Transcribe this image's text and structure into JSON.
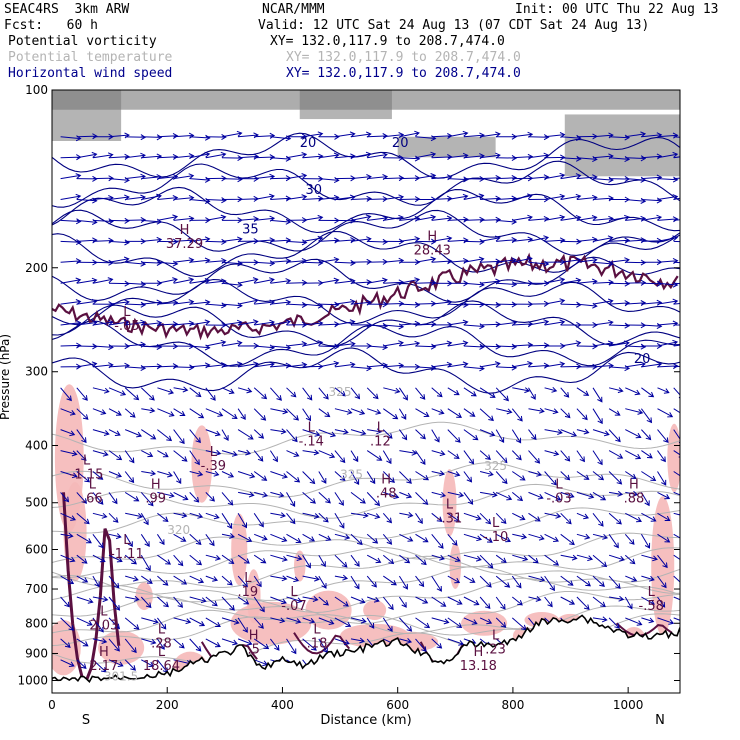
{
  "header": {
    "model": "SEAC4RS  3km ARW",
    "center": "NCAR/MMM",
    "init": "Init: 00 UTC Thu 22 Aug 13",
    "fcst": "Fcst:   60 h",
    "valid": "Valid: 12 UTC Sat 24 Aug 13 (07 CDT Sat 24 Aug 13)",
    "fields": [
      {
        "name": "Potential vorticity",
        "xy": "XY= 132.0,117.9 to 208.7,474.0"
      },
      {
        "name": "Potential temperature",
        "xy": "XY= 132.0,117.9 to 208.7,474.0"
      },
      {
        "name": "Horizontal wind speed",
        "xy": "XY= 132.0,117.9 to 208.7,474.0"
      }
    ]
  },
  "colors": {
    "pv_fill": "#f5b8b8",
    "pv_contour": "#5a1040",
    "theta_contour": "#b4b4b4",
    "wind_contour": "#000080",
    "vectors": "#0000a0",
    "terrain": "#000000",
    "strat_shading": "#777777"
  },
  "chart_data": {
    "type": "cross-section",
    "xlabel": "Distance (km)",
    "ylabel": "Pressure (hPa)",
    "x_ticks": [
      0,
      200,
      400,
      600,
      800,
      1000
    ],
    "y_ticks": [
      100,
      200,
      300,
      400,
      500,
      600,
      700,
      800,
      900,
      1000
    ],
    "xlim": [
      0,
      1090
    ],
    "ylim": [
      1050,
      100
    ],
    "y_scale": "log",
    "endpoints": {
      "left": "S",
      "right": "N"
    },
    "terrain_surface_hpa": {
      "x": [
        0,
        20,
        50,
        100,
        150,
        200,
        240,
        270,
        300,
        330,
        360,
        400,
        440,
        480,
        520,
        560,
        600,
        640,
        680,
        720,
        760,
        800,
        840,
        880,
        920,
        960,
        1000,
        1040,
        1080,
        1090
      ],
      "p": [
        1000,
        1000,
        995,
        990,
        985,
        975,
        940,
        920,
        900,
        880,
        950,
        925,
        945,
        900,
        895,
        870,
        860,
        900,
        935,
        870,
        870,
        860,
        800,
        790,
        780,
        810,
        835,
        845,
        830,
        825
      ]
    },
    "theta_contours": [
      {
        "label": "301.5",
        "x": 90,
        "p": 1000
      },
      {
        "label": "320",
        "x": 200,
        "p": 565
      },
      {
        "label": "325",
        "x": 500,
        "p": 455
      },
      {
        "label": "325",
        "x": 750,
        "p": 440
      },
      {
        "label": "325",
        "x": 480,
        "p": 330
      }
    ],
    "wind_contours": [
      {
        "label": "20",
        "x": 430,
        "p": 125
      },
      {
        "label": "20",
        "x": 590,
        "p": 125
      },
      {
        "label": "30",
        "x": 440,
        "p": 150
      },
      {
        "label": "35",
        "x": 330,
        "p": 175
      },
      {
        "label": "20",
        "x": 1010,
        "p": 290
      }
    ],
    "pv_labels": [
      {
        "label": "L",
        "value": "-.14",
        "x": 450,
        "p": 400
      },
      {
        "label": "L",
        "value": ".12",
        "x": 570,
        "p": 400
      },
      {
        "label": "H",
        "value": ".48",
        "x": 580,
        "p": 490
      },
      {
        "label": "L",
        "value": "-.31",
        "x": 690,
        "p": 540
      },
      {
        "label": "L",
        "value": "-.10",
        "x": 770,
        "p": 580
      },
      {
        "label": "L",
        "value": "-.03",
        "x": 880,
        "p": 500
      },
      {
        "label": "H",
        "value": ".88",
        "x": 1010,
        "p": 500
      },
      {
        "label": "H",
        "value": ".99",
        "x": 180,
        "p": 500
      },
      {
        "label": "L",
        "value": ".66",
        "x": 70,
        "p": 500
      },
      {
        "label": "L",
        "value": "-1.11",
        "x": 130,
        "p": 620
      },
      {
        "label": "L",
        "value": ".19",
        "x": 340,
        "p": 720
      },
      {
        "label": "L",
        "value": "-.07",
        "x": 420,
        "p": 760
      },
      {
        "label": "L",
        "value": "2.03",
        "x": 90,
        "p": 820
      },
      {
        "label": "L",
        "value": ".28",
        "x": 190,
        "p": 880
      },
      {
        "label": "L",
        "value": ".18",
        "x": 460,
        "p": 880
      },
      {
        "label": "H",
        "value": "2.17",
        "x": 90,
        "p": 960
      },
      {
        "label": "L",
        "value": "18.64",
        "x": 190,
        "p": 960
      },
      {
        "label": "H",
        "value": "13.18",
        "x": 740,
        "p": 960
      },
      {
        "label": "L",
        "value": ".23",
        "x": 770,
        "p": 900
      },
      {
        "label": "L",
        "value": "-.58",
        "x": 1040,
        "p": 760
      },
      {
        "label": "H",
        "value": ".5",
        "x": 350,
        "p": 900
      },
      {
        "label": "H",
        "value": "28.43",
        "x": 660,
        "p": 190
      },
      {
        "label": "H",
        "value": "37.29",
        "x": 230,
        "p": 185
      },
      {
        "label": "L",
        "value": "-.05",
        "x": 130,
        "p": 255
      },
      {
        "label": "L",
        "value": "-1.15",
        "x": 60,
        "p": 455
      },
      {
        "label": "L",
        "value": "-.39",
        "x": 280,
        "p": 440
      }
    ]
  },
  "plot_text": {
    "left_endpoint": "S",
    "right_endpoint": "N"
  }
}
